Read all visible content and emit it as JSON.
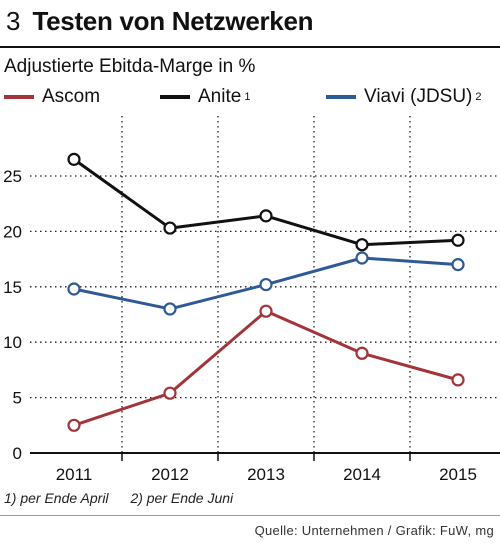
{
  "header": {
    "figure_number": "3",
    "title": "Testen von Netzwerken"
  },
  "footnotes": [
    "1) per Ende April",
    "2) per Ende Juni"
  ],
  "source": "Quelle: Unternehmen / Grafik: FuW, mg",
  "colors": {
    "Ascom": "#a3343a",
    "Anite": "#111111",
    "Viavi": "#2e5a96",
    "grid": "#222222",
    "axis": "#111111"
  },
  "chart_data": {
    "type": "line",
    "title": "Testen von Netzwerken",
    "ylabel": "Adjustierte Ebitda-Marge in %",
    "xlabel": "",
    "x": [
      "2011",
      "2012",
      "2013",
      "2014",
      "2015"
    ],
    "ylim": [
      0,
      30
    ],
    "yticks": [
      0,
      5,
      10,
      15,
      20,
      25
    ],
    "grid": true,
    "legend": "top",
    "series": [
      {
        "name": "Ascom",
        "sup": "",
        "color": "#a3343a",
        "values": [
          2.5,
          5.4,
          12.8,
          9.0,
          6.6
        ]
      },
      {
        "name": "Anite",
        "sup": "1",
        "color": "#111111",
        "values": [
          26.5,
          20.3,
          21.4,
          18.8,
          19.2
        ]
      },
      {
        "name": "Viavi (JDSU)",
        "sup": "2",
        "color": "#2e5a96",
        "values": [
          14.8,
          13.0,
          15.2,
          17.6,
          17.0
        ]
      }
    ]
  }
}
